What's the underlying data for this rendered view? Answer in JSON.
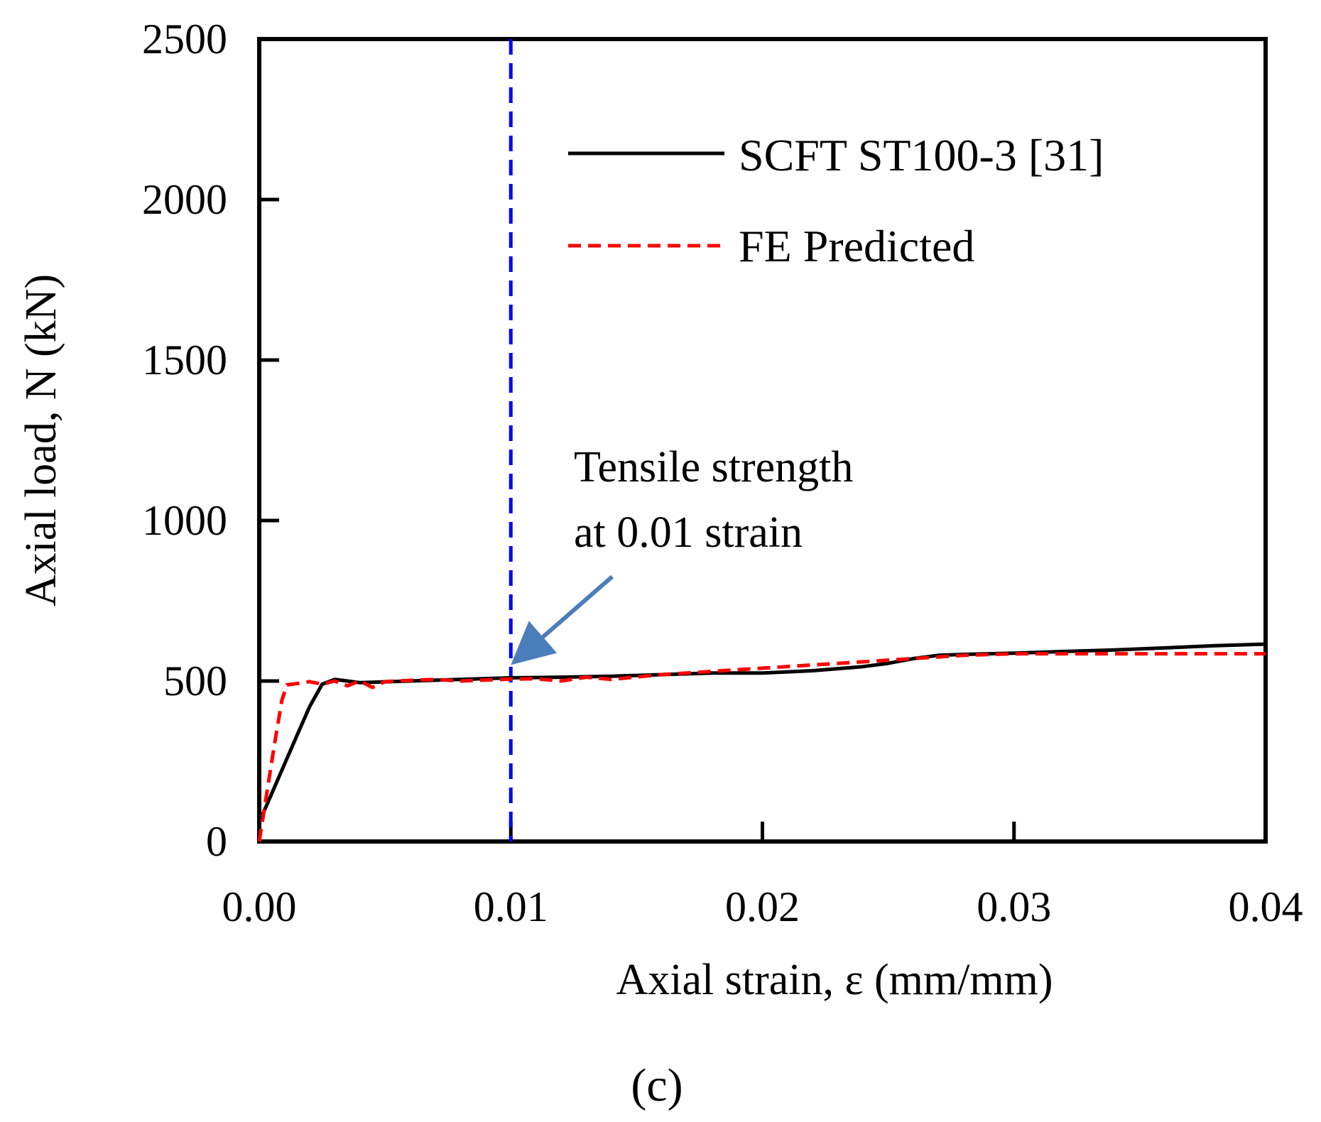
{
  "chart_data": {
    "type": "line",
    "title": "",
    "xlabel": "Axial strain, ε (mm/mm)",
    "ylabel": "Axial load, N (kN)",
    "xlim": [
      0,
      0.04
    ],
    "ylim": [
      0,
      2500
    ],
    "x_ticks": [
      0,
      0.01,
      0.02,
      0.03,
      0.04
    ],
    "x_tick_labels": [
      "0.00",
      "0.01",
      "0.02",
      "0.03",
      "0.04"
    ],
    "y_ticks": [
      0,
      500,
      1000,
      1500,
      2000,
      2500
    ],
    "y_tick_labels": [
      "0",
      "500",
      "1000",
      "1500",
      "2000",
      "2500"
    ],
    "grid": false,
    "legend_position": "top-right",
    "panel_label": "(c)",
    "series": [
      {
        "name": "SCFT ST100-3 [31]",
        "style": "solid",
        "color": "#000000",
        "x": [
          0,
          0.0005,
          0.001,
          0.0015,
          0.002,
          0.0025,
          0.003,
          0.0035,
          0.004,
          0.006,
          0.008,
          0.01,
          0.012,
          0.014,
          0.016,
          0.018,
          0.02,
          0.022,
          0.024,
          0.025,
          0.026,
          0.027,
          0.028,
          0.03,
          0.032,
          0.034,
          0.036,
          0.038,
          0.04
        ],
        "y": [
          60,
          150,
          240,
          330,
          420,
          490,
          505,
          500,
          495,
          500,
          505,
          510,
          512,
          515,
          520,
          525,
          525,
          532,
          545,
          555,
          570,
          580,
          583,
          587,
          592,
          597,
          603,
          610,
          615
        ]
      },
      {
        "name": "FE Predicted",
        "style": "dashed",
        "color": "#ff0000",
        "x": [
          0,
          0.0003,
          0.0006,
          0.0009,
          0.0011,
          0.0015,
          0.002,
          0.0025,
          0.003,
          0.0035,
          0.004,
          0.0045,
          0.005,
          0.006,
          0.007,
          0.008,
          0.009,
          0.01,
          0.011,
          0.012,
          0.013,
          0.014,
          0.016,
          0.018,
          0.02,
          0.022,
          0.024,
          0.026,
          0.028,
          0.03,
          0.032,
          0.034,
          0.036,
          0.038,
          0.04
        ],
        "y": [
          0,
          150,
          300,
          440,
          488,
          492,
          498,
          490,
          500,
          485,
          500,
          480,
          498,
          502,
          505,
          500,
          503,
          506,
          507,
          500,
          512,
          505,
          520,
          530,
          540,
          550,
          560,
          570,
          580,
          585,
          585,
          585,
          585,
          585,
          585
        ]
      }
    ],
    "reference_lines": [
      {
        "orientation": "vertical",
        "x": 0.01,
        "style": "dashed",
        "color": "#0000ff"
      }
    ],
    "annotations": [
      {
        "lines": [
          "Tensile strength",
          "at 0.01 strain"
        ],
        "arrow_to_x": 0.01,
        "arrow_to_y": 510,
        "arrow_color": "#4a7ebb"
      }
    ]
  }
}
